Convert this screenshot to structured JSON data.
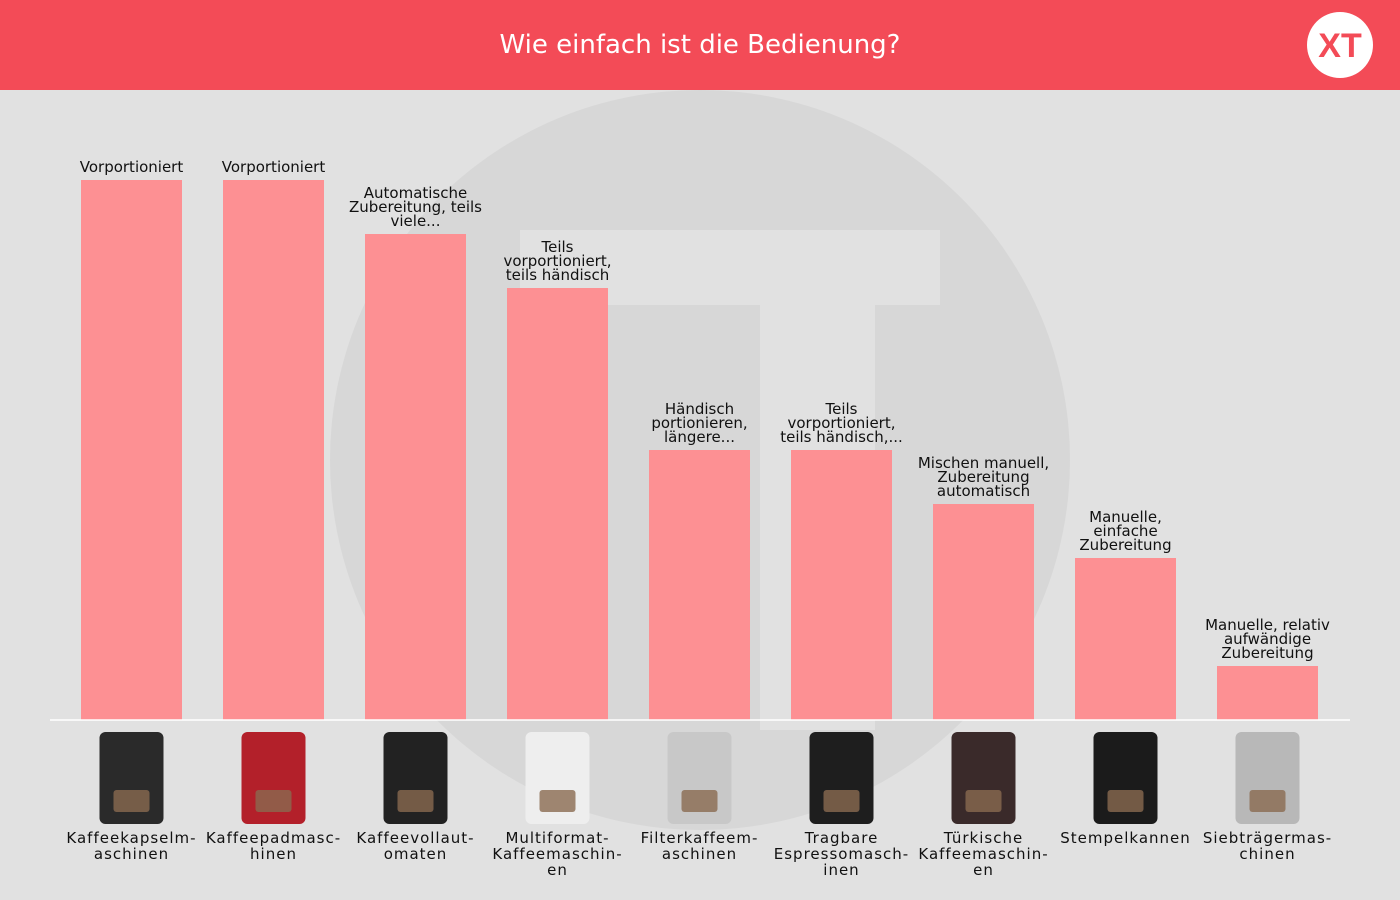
{
  "logo": "XT",
  "chart_data": {
    "type": "bar",
    "title": "Wie einfach ist die Bedienung?",
    "categories": [
      "Kaffeekapselm-\naschinen",
      "Kaffeepadmasc-\nhinen",
      "Kaffeevollaut-\nomaten",
      "Multiformat-\nKaffeemaschin-\nen",
      "Filterkaffeem-\naschinen",
      "Tragbare\nEspressomasch-\ninen",
      "Türkische\nKaffeemaschin-\nen",
      "Stempelkannen",
      "Siebträgermas-\nchinen"
    ],
    "values": [
      10,
      10,
      9,
      8,
      5,
      5,
      4,
      3,
      1
    ],
    "annotations": [
      "Vorportioniert",
      "Vorportioniert",
      "Automatische\nZubereitung, teils\nviele...",
      "Teils\nvorportioniert,\nteils händisch",
      "Händisch\nportionieren,\nlängere...",
      "Teils\nvorportioniert,\nteils händisch,...",
      "Mischen manuell,\nZubereitung\nautomatisch",
      "Manuelle,\neinfache\nZubereitung",
      "Manuelle, relativ\naufwändige\nZubereitung"
    ],
    "color": "#fd9093"
  }
}
